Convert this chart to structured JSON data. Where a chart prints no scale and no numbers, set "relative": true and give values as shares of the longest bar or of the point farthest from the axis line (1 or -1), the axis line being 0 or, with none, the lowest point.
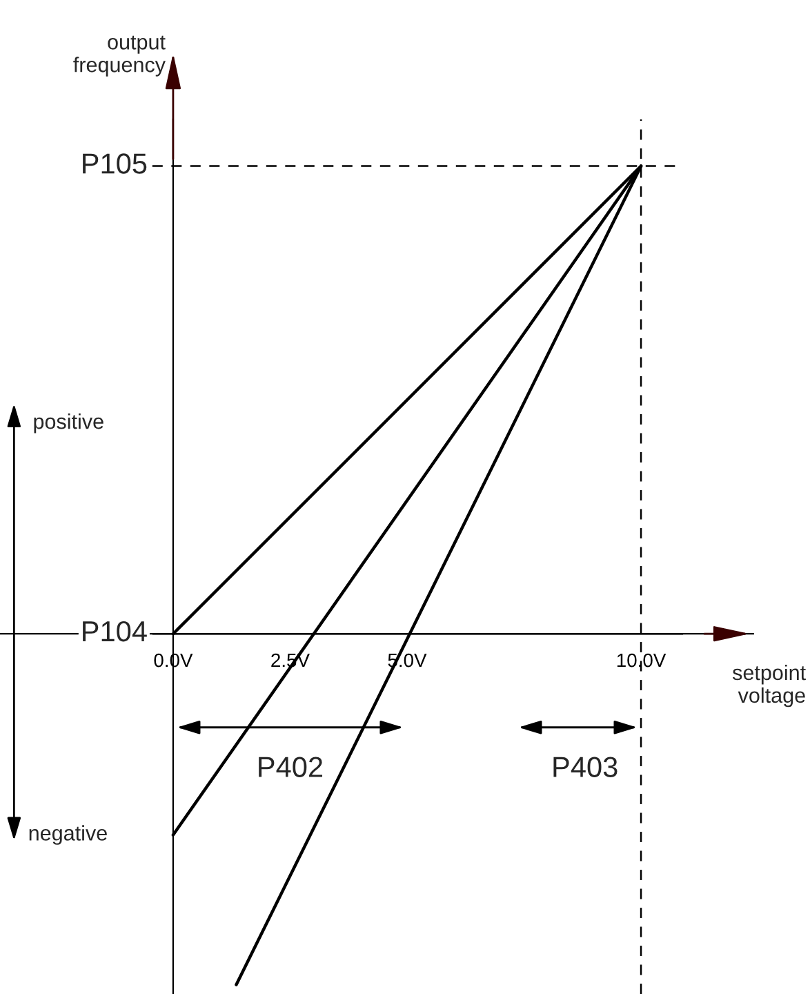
{
  "chart_data": {
    "type": "line",
    "relative": true,
    "xlabel": "setpoint\nvoltage",
    "ylabel": "output\nfrequency",
    "xlim": [
      -3.7,
      12.4
    ],
    "xticks": [
      {
        "value": 0,
        "label": "0.0V"
      },
      {
        "value": 2.5,
        "label": "2.5V"
      },
      {
        "value": 5,
        "label": "5.0V"
      },
      {
        "value": 10,
        "label": "10.0V"
      }
    ],
    "series": [
      {
        "color": "#000000",
        "x": [
          0,
          10
        ],
        "values": [
          0,
          1
        ]
      },
      {
        "color": "#000000",
        "x": [
          0,
          10
        ],
        "values": [
          -0.43,
          1
        ]
      },
      {
        "color": "#000000",
        "x": [
          1.35,
          10
        ],
        "values": [
          -0.75,
          1
        ]
      }
    ],
    "ref_lines": [
      {
        "axis": "y",
        "value": 1,
        "label": "P105",
        "line_style": "dashed",
        "color": "#000000"
      },
      {
        "axis": "y",
        "value": 0,
        "label": "P104",
        "line_style": "solid",
        "color": "#000000"
      },
      {
        "axis": "x",
        "value": 10,
        "line_style": "dashed",
        "color": "#000000"
      }
    ],
    "annotations": [
      "positive",
      "negative",
      "P402",
      "P403"
    ],
    "grid": false,
    "marker": "none",
    "line_style": "solid"
  }
}
